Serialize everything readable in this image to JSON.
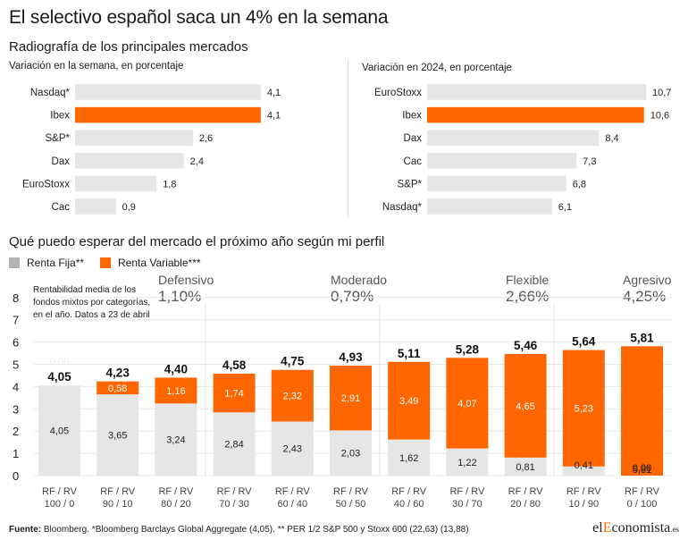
{
  "title": "El selectivo español saca un 4% en la semana",
  "subtitle": "Radiografía de los principales mercados",
  "colors": {
    "orange": "#ff6600",
    "grey": "#e6e6e6",
    "legend_grey": "#b3b3b3"
  },
  "chart_data": [
    {
      "type": "bar",
      "orientation": "horizontal",
      "subtitle": "Variación en la semana, en porcentaje",
      "categories": [
        "Nasdaq*",
        "Ibex",
        "S&P*",
        "Dax",
        "EuroStoxx",
        "Cac"
      ],
      "values": [
        4.1,
        4.1,
        2.6,
        2.4,
        1.8,
        0.9
      ],
      "value_labels": [
        "4,1",
        "4,1",
        "2,6",
        "2,4",
        "1,8",
        "0,9"
      ],
      "highlight": "Ibex"
    },
    {
      "type": "bar",
      "orientation": "horizontal",
      "subtitle": "Variación en 2024, en porcentaje",
      "categories": [
        "EuroStoxx",
        "Ibex",
        "Dax",
        "Cac",
        "S&P*",
        "Nasdaq*"
      ],
      "values": [
        10.7,
        10.6,
        8.4,
        7.3,
        6.8,
        6.1
      ],
      "value_labels": [
        "10,7",
        "10,6",
        "8,4",
        "7,3",
        "6,8",
        "6,1"
      ],
      "highlight": "Ibex"
    },
    {
      "type": "bar",
      "stacked": true,
      "title": "Qué puedo esperar del mercado el próximo año según mi perfil",
      "note": "Rentabilidad media de los fondos mixtos por categorías, en el año. Datos a 23 de abril",
      "categories": [
        "RF / RV\n100 / 0",
        "RF / RV\n90 / 10",
        "RF / RV\n80 / 20",
        "RF / RV\n70 / 30",
        "RF / RV\n60 / 40",
        "RF / RV\n50 / 50",
        "RF / RV\n40 / 60",
        "RF / RV\n30 / 70",
        "RF / RV\n20 / 80",
        "RF / RV\n10 / 90",
        "RF / RV\n0 / 100"
      ],
      "series": [
        {
          "name": "Renta Fija**",
          "values": [
            4.05,
            3.65,
            3.24,
            2.84,
            2.43,
            2.03,
            1.62,
            1.22,
            0.81,
            0.41,
            0.0
          ],
          "labels": [
            "4,05",
            "3,65",
            "3,24",
            "2,84",
            "2,43",
            "2,03",
            "1,62",
            "1,22",
            "0,81",
            "0,41",
            "0,00"
          ]
        },
        {
          "name": "Renta Variable***",
          "values": [
            0.0,
            0.58,
            1.16,
            1.74,
            2.32,
            2.91,
            3.49,
            4.07,
            4.65,
            5.23,
            5.81
          ],
          "labels": [
            "0,00",
            "0,58",
            "1,16",
            "1,74",
            "2,32",
            "2,91",
            "3,49",
            "4,07",
            "4,65",
            "5,23",
            "5,81"
          ]
        }
      ],
      "totals": [
        "4,05",
        "4,23",
        "4,40",
        "4,58",
        "4,75",
        "4,93",
        "5,11",
        "5,28",
        "5,46",
        "5,64",
        "5,81"
      ],
      "total_values": [
        4.05,
        4.23,
        4.4,
        4.58,
        4.75,
        4.93,
        5.11,
        5.28,
        5.46,
        5.64,
        5.81
      ],
      "y_ticks": [
        "0",
        "1",
        "2",
        "3",
        "4",
        "5",
        "6",
        "7",
        "8"
      ],
      "ylim": [
        0,
        8
      ],
      "grid": true,
      "profiles": [
        {
          "name": "Defensivo",
          "value": "1,10%"
        },
        {
          "name": "Moderado",
          "value": "0,79%"
        },
        {
          "name": "Flexible",
          "value": "2,66%"
        },
        {
          "name": "Agresivo",
          "value": "4,25%"
        }
      ]
    }
  ],
  "footer": {
    "source_label": "Fuente:",
    "source_text": " Bloomberg. *Bloomberg Barclays Global Aggregate (4,05). ** PER 1/2 S&P 500 y Stoxx 600 (22,63) (13,88)"
  },
  "logo": {
    "pre": "el",
    "highlight": "E",
    "post": "conomista",
    "suffix": ".es"
  }
}
